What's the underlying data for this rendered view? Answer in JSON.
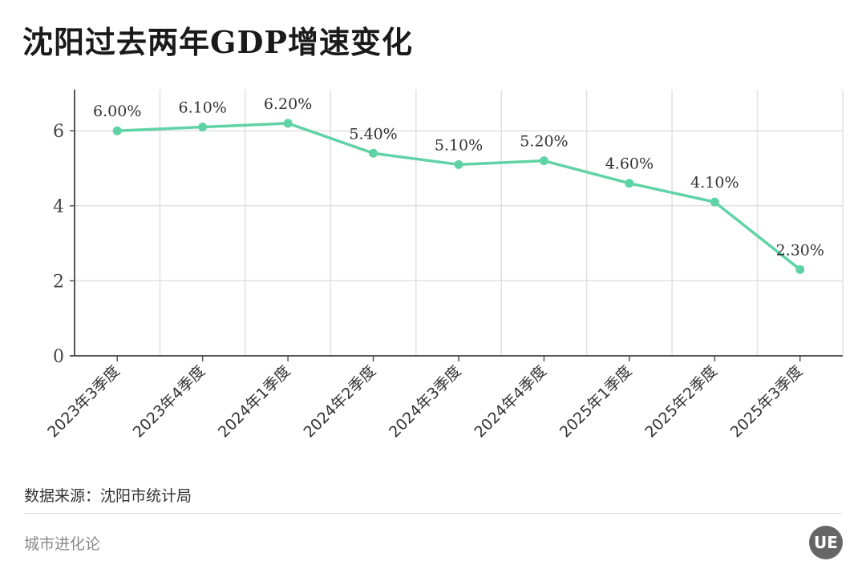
{
  "chart_data": {
    "type": "line",
    "title": "沈阳过去两年GDP增速变化",
    "categories": [
      "2023年3季度",
      "2023年4季度",
      "2024年1季度",
      "2024年2季度",
      "2024年3季度",
      "2024年4季度",
      "2025年1季度",
      "2025年2季度",
      "2025年3季度"
    ],
    "series": [
      {
        "values": [
          6.0,
          6.1,
          6.2,
          5.4,
          5.1,
          5.2,
          4.6,
          4.1,
          2.3
        ]
      }
    ],
    "data_labels": [
      "6.00%",
      "6.10%",
      "6.20%",
      "5.40%",
      "5.10%",
      "5.20%",
      "4.60%",
      "4.10%",
      "2.30%"
    ],
    "yticks": [
      "0",
      "2",
      "4",
      "6"
    ],
    "ylim": [
      0,
      7.1
    ],
    "xlabel": "",
    "ylabel": "",
    "grid": true,
    "line_color": "#5fd3a5"
  },
  "footer": {
    "source": "数据来源：沈阳市统计局",
    "brand": "城市进化论",
    "logo_text": "UE"
  }
}
